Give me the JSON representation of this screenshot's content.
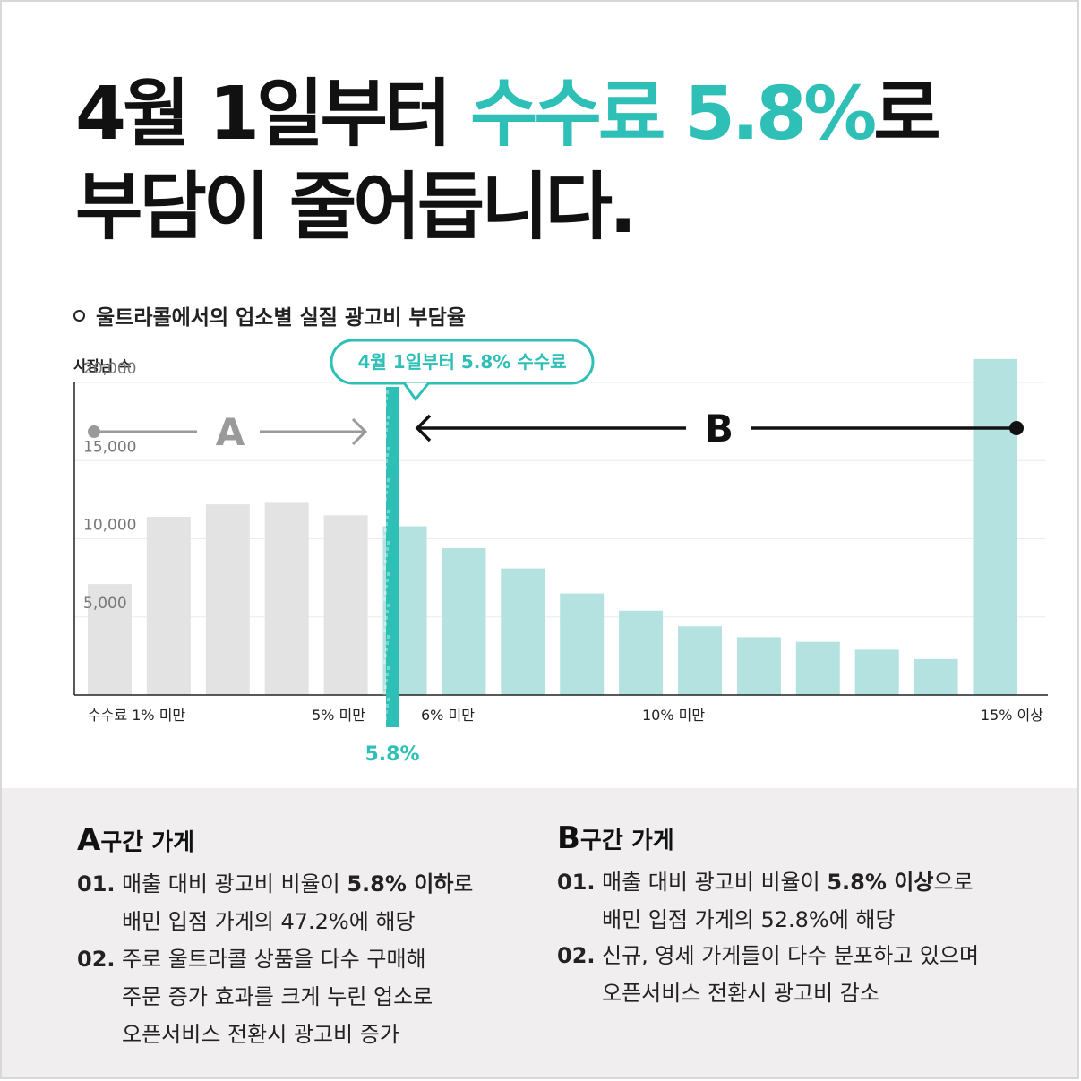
{
  "headline": {
    "line1_a": "4월 1일부터 ",
    "line1_accent": "수수료 5.8%",
    "line1_b": "로",
    "line2": "부담이 줄어듭니다."
  },
  "subtitle": "울트라콜에서의 업소별 실질 광고비 부담율",
  "colors": {
    "accent": "#2ebfb6",
    "bar_a": "#e3e3e3",
    "bar_b": "#b4e2e1",
    "text": "#111111",
    "bottom_bg": "#f1eeef"
  },
  "chart_data": {
    "type": "bar",
    "ylabel": "사장님 수",
    "yticks": [
      "20,000",
      "15,000",
      "10,000",
      "5,000"
    ],
    "ytick_values": [
      20000,
      15000,
      10000,
      5000
    ],
    "ylim": [
      0,
      20000
    ],
    "xtick_labels": [
      "수수료 1% 미만",
      "5% 미만",
      "6% 미만",
      "10% 미만",
      "15% 이상"
    ],
    "groups": [
      "A",
      "A",
      "A",
      "A",
      "A",
      "B",
      "B",
      "B",
      "B",
      "B",
      "B",
      "B",
      "B",
      "B",
      "B",
      "B"
    ],
    "values": [
      7100,
      11400,
      12200,
      12300,
      11500,
      10800,
      9400,
      8100,
      6500,
      5400,
      4400,
      3700,
      3400,
      2900,
      2300,
      21500
    ],
    "divider_label": "5.8%",
    "callout": "4월 1일부터 5.8% 수수료",
    "region_a": "A",
    "region_b": "B"
  },
  "section_a": {
    "letter": "A",
    "title": "구간 가게",
    "items": [
      {
        "num": "01.",
        "l1_pre": "매출 대비 광고비 비율이 ",
        "l1_bold": "5.8% 이하",
        "l1_post": "로",
        "l2": "배민 입점 가게의 47.2%에 해당"
      },
      {
        "num": "02.",
        "l1": "주로 울트라콜 상품을 다수 구매해",
        "l2": "주문 증가 효과를 크게 누린 업소로",
        "l3": "오픈서비스 전환시 광고비 증가"
      }
    ]
  },
  "section_b": {
    "letter": "B",
    "title": "구간 가게",
    "items": [
      {
        "num": "01.",
        "l1_pre": "매출 대비 광고비 비율이 ",
        "l1_bold": "5.8% 이상",
        "l1_post": "으로",
        "l2": "배민 입점 가게의 52.8%에 해당"
      },
      {
        "num": "02.",
        "l1": "신규, 영세 가게들이 다수 분포하고 있으며",
        "l2": "오픈서비스 전환시 광고비 감소"
      }
    ]
  }
}
